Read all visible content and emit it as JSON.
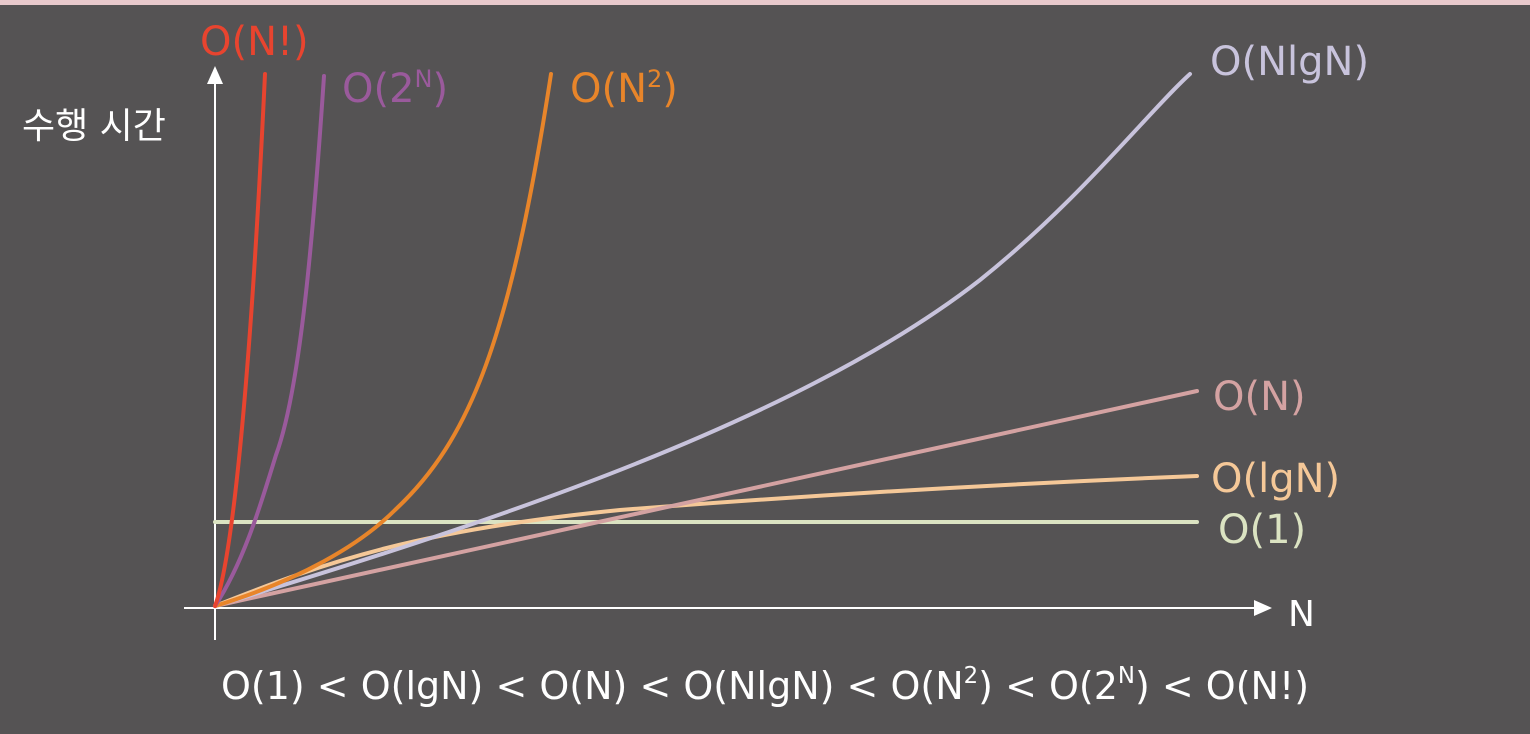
{
  "chart_data": {
    "type": "line",
    "ylabel": "수행 시간",
    "xlabel": "N",
    "series": [
      {
        "name": "O(N!)",
        "base": "O(N!)",
        "sup": "",
        "close": "",
        "color": "#e8442f"
      },
      {
        "name": "O(2^N)",
        "base": "O(2",
        "sup": "N",
        "close": ")",
        "color": "#9a5a9c"
      },
      {
        "name": "O(N^2)",
        "base": "O(N",
        "sup": "2",
        "close": ")",
        "color": "#e8852a"
      },
      {
        "name": "O(NlgN)",
        "base": "O(NlgN)",
        "sup": "",
        "close": "",
        "color": "#c8c3dc"
      },
      {
        "name": "O(N)",
        "base": "O(N)",
        "sup": "",
        "close": "",
        "color": "#d4a2a2"
      },
      {
        "name": "O(lgN)",
        "base": "O(lgN)",
        "sup": "",
        "close": "",
        "color": "#f5c898"
      },
      {
        "name": "O(1)",
        "base": "O(1)",
        "sup": "",
        "close": "",
        "color": "#dbe3c2"
      }
    ]
  },
  "ordering": [
    {
      "base": "O(1)",
      "sup": "",
      "close": ""
    },
    {
      "base": "O(lgN)",
      "sup": "",
      "close": ""
    },
    {
      "base": "O(N)",
      "sup": "",
      "close": ""
    },
    {
      "base": "O(NlgN)",
      "sup": "",
      "close": ""
    },
    {
      "base": "O(N",
      "sup": "2",
      "close": ")"
    },
    {
      "base": "O(2",
      "sup": "N",
      "close": ")"
    },
    {
      "base": "O(N!)",
      "sup": "",
      "close": ""
    }
  ],
  "ordering_separator": "<"
}
